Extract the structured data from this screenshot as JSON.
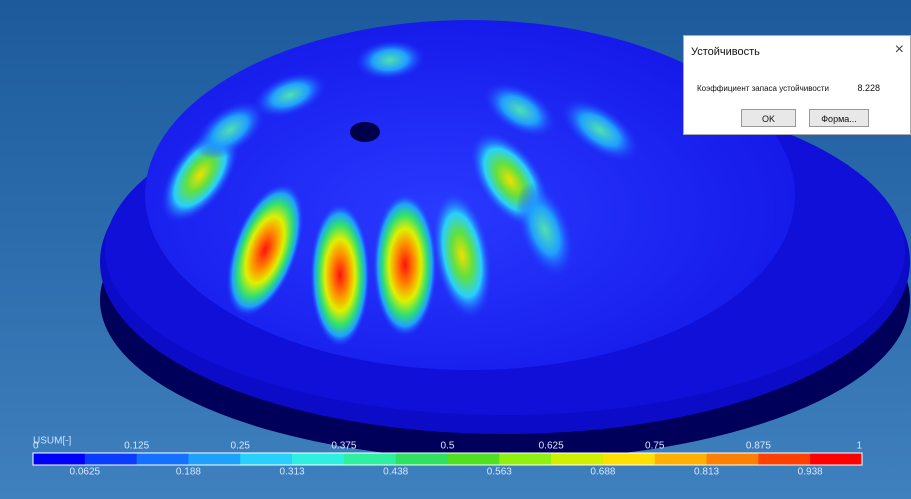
{
  "dialog": {
    "title": "Устойчивость",
    "close": "×",
    "label": "Коэффициент запаса устойчивости",
    "value": 8.228,
    "buttons": [
      "OK",
      "Форма..."
    ]
  },
  "legend": {
    "title": "USUM[-]",
    "labels": [
      0,
      0.0625,
      0.125,
      0.188,
      0.25,
      0.313,
      0.375,
      0.438,
      0.5,
      0.563,
      0.625,
      0.688,
      0.75,
      0.813,
      0.875,
      0.938,
      1
    ],
    "colors": [
      "#0000ff",
      "#0a3cff",
      "#1470ff",
      "#1ea0ff",
      "#28d0ff",
      "#2ef0e0",
      "#2ef0a0",
      "#30e060",
      "#50e020",
      "#90f010",
      "#d0f000",
      "#ffe000",
      "#ffb000",
      "#ff8000",
      "#ff4000",
      "#ff0000"
    ]
  }
}
